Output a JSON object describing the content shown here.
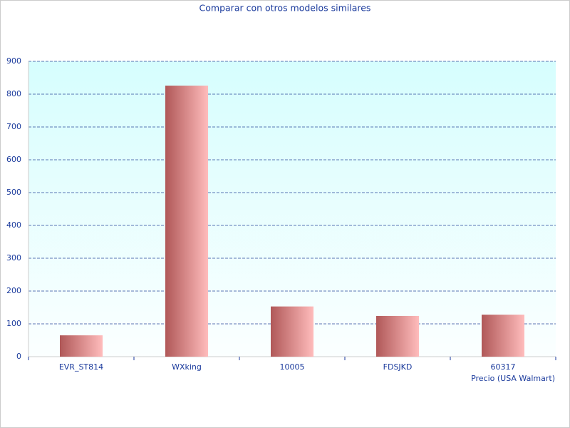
{
  "chart_data": {
    "type": "bar",
    "title": "Comparar con otros modelos similares",
    "x_label": "Precio (USA Walmart)",
    "categories": [
      "EVR_ST814",
      "WXking",
      "10005",
      "FDSJKD",
      "60317"
    ],
    "values": [
      65,
      826,
      153,
      124,
      128
    ],
    "color": "#b05858",
    "ylim": [
      0,
      900
    ],
    "yticks": [
      0,
      100,
      200,
      300,
      400,
      500,
      600,
      700,
      800,
      900
    ],
    "grid": true
  }
}
